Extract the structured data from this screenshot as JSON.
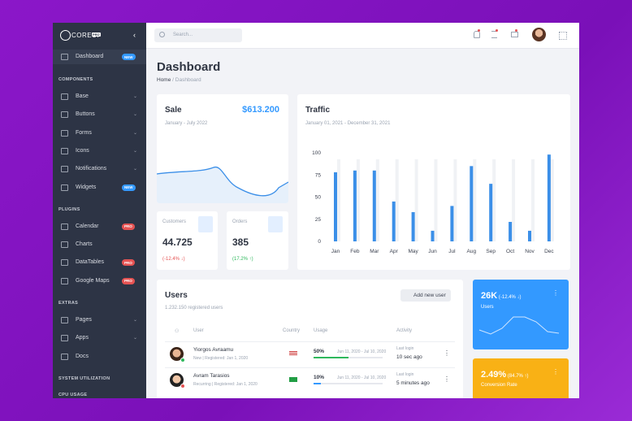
{
  "sidebar": {
    "brand": "COREUI",
    "brand_badge": "PRO",
    "top": {
      "label": "Dashboard",
      "badge": "NEW"
    },
    "groups": [
      {
        "heading": "COMPONENTS",
        "items": [
          {
            "label": "Base"
          },
          {
            "label": "Buttons"
          },
          {
            "label": "Forms"
          },
          {
            "label": "Icons"
          },
          {
            "label": "Notifications"
          },
          {
            "label": "Widgets",
            "badge": "NEW"
          }
        ]
      },
      {
        "heading": "PLUGINS",
        "items": [
          {
            "label": "Calendar",
            "badge": "PRO"
          },
          {
            "label": "Charts"
          },
          {
            "label": "DataTables",
            "badge": "PRO"
          },
          {
            "label": "Google Maps",
            "badge": "PRO"
          }
        ]
      },
      {
        "heading": "EXTRAS",
        "items": [
          {
            "label": "Pages"
          },
          {
            "label": "Apps"
          },
          {
            "label": "Docs"
          }
        ]
      },
      {
        "heading": "SYSTEM UTILIZATION",
        "items": [
          {
            "label": "CPU USAGE"
          }
        ]
      }
    ]
  },
  "header": {
    "search_placeholder": "Search..."
  },
  "page": {
    "title": "Dashboard",
    "breadcrumb": [
      "Home",
      "Dashboard"
    ]
  },
  "sale": {
    "title": "Sale",
    "amount": "$613.200",
    "period": "January - July 2022"
  },
  "customers": {
    "label": "Customers",
    "value": "44.725",
    "change": "(-12.4% ↓)"
  },
  "orders": {
    "label": "Orders",
    "value": "385",
    "change": "(17.2% ↑)"
  },
  "traffic": {
    "title": "Traffic",
    "period": "January 01, 2021 - December 31, 2021",
    "categories": [
      "Jan",
      "Feb",
      "Mar",
      "Apr",
      "May",
      "Jun",
      "Jul",
      "Aug",
      "Sep",
      "Oct",
      "Nov",
      "Dec"
    ],
    "values": [
      78,
      80,
      80,
      45,
      33,
      12,
      40,
      85,
      65,
      22,
      12,
      98
    ],
    "color": "#3b8fe8",
    "ylim": [
      0,
      100
    ],
    "yticks": [
      0,
      25,
      50,
      75,
      100
    ]
  },
  "users": {
    "title": "Users",
    "subtitle": "1.232.150 registered users",
    "button": "Add new user",
    "columns": [
      "User",
      "Country",
      "Usage",
      "Activity"
    ],
    "rows": [
      {
        "name": "Yiorgos Avraamu",
        "meta": "New | Registered: Jan 1, 2020",
        "usage": {
          "value": 50,
          "label": "50%"
        },
        "range": "Jun 11, 2020 - Jul 10, 2020",
        "activity_label": "Last login",
        "activity": "10 sec ago"
      },
      {
        "name": "Avram Tarasios",
        "meta": "Recurring | Registered: Jan 1, 2020",
        "usage": {
          "value": 10,
          "label": "10%"
        },
        "range": "Jun 11, 2020 - Jul 10, 2020",
        "activity_label": "Last login",
        "activity": "5 minutes ago"
      }
    ]
  },
  "widgets": [
    {
      "value": "26K",
      "change": "(-12.4% ↓)",
      "label": "Users"
    },
    {
      "value": "2.49%",
      "change": "(84.7% ↑)",
      "label": "Conversion Rate"
    }
  ]
}
